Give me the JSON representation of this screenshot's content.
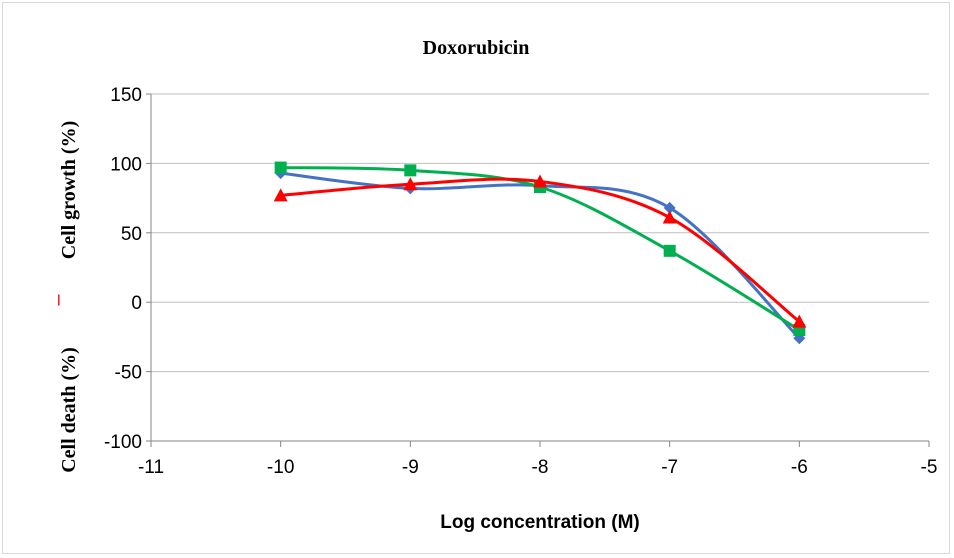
{
  "chart_data": {
    "type": "line",
    "title": "Doxorubicin",
    "xlabel": "Log concentration (M)",
    "ylabel_top": "Cell growth (%)",
    "ylabel_bottom": "Cell death (%)",
    "ylabel_separator": "–",
    "xlim": [
      -11,
      -5
    ],
    "ylim": [
      -100,
      150
    ],
    "xticks": [
      -11,
      -10,
      -9,
      -8,
      -7,
      -6,
      -5
    ],
    "yticks": [
      -100,
      -50,
      0,
      50,
      100,
      150
    ],
    "grid": "horizontal",
    "legend": "none",
    "series": [
      {
        "color": "#4472c4",
        "marker": "diamond",
        "x": [
          -10,
          -9,
          -8,
          -7,
          -6
        ],
        "y": [
          93,
          82,
          84,
          68,
          -26
        ]
      },
      {
        "color": "#00b050",
        "marker": "square",
        "x": [
          -10,
          -9,
          -8,
          -7,
          -6
        ],
        "y": [
          97,
          95,
          83,
          37,
          -20
        ]
      },
      {
        "color": "#ff0000",
        "marker": "triangle",
        "x": [
          -10,
          -9,
          -8,
          -7,
          -6
        ],
        "y": [
          77,
          85,
          87,
          61,
          -14
        ]
      }
    ]
  }
}
